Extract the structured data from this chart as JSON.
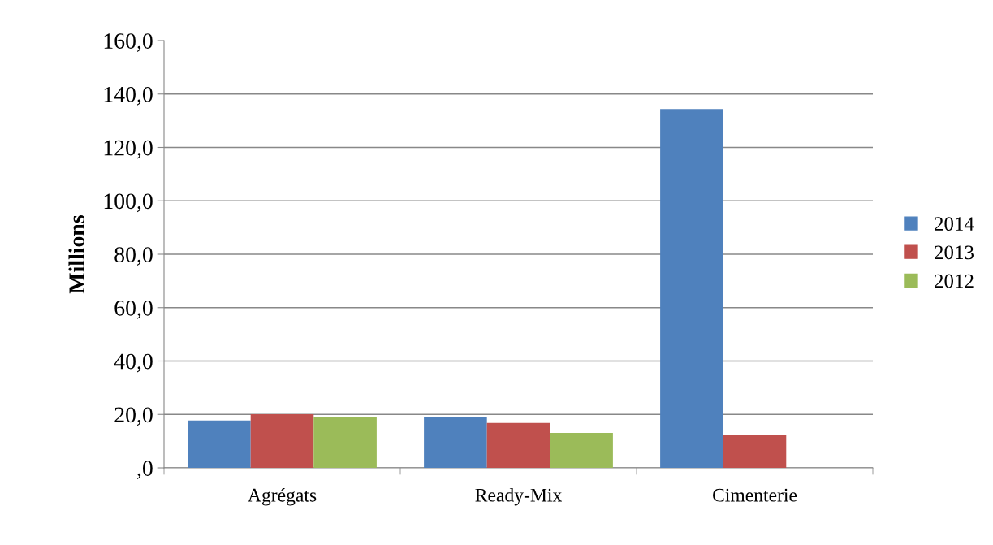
{
  "chart_data": {
    "type": "bar",
    "ylabel": "Millions",
    "categories": [
      "Agrégats",
      "Ready-Mix",
      "Cimenterie"
    ],
    "series": [
      {
        "name": "2014",
        "color": "#4f81bd",
        "values": [
          17.7,
          18.9,
          134.4
        ]
      },
      {
        "name": "2013",
        "color": "#c0504d",
        "values": [
          20.1,
          16.8,
          12.5
        ]
      },
      {
        "name": "2012",
        "color": "#9bbb59",
        "values": [
          18.9,
          13.1,
          null
        ]
      }
    ],
    "ylim": [
      0,
      160
    ],
    "yticks": [
      {
        "value": 0,
        "label": ",0"
      },
      {
        "value": 20,
        "label": "20,0"
      },
      {
        "value": 40,
        "label": "40,0"
      },
      {
        "value": 60,
        "label": "60,0"
      },
      {
        "value": 80,
        "label": "80,0"
      },
      {
        "value": 100,
        "label": "100,0"
      },
      {
        "value": 120,
        "label": "120,0"
      },
      {
        "value": 140,
        "label": "140,0"
      },
      {
        "value": 160,
        "label": "160,0"
      }
    ],
    "grid": "y",
    "legend": "right"
  }
}
